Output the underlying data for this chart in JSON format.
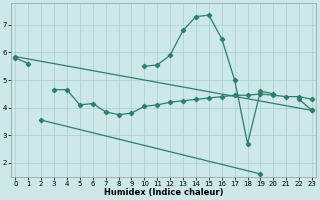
{
  "xlabel": "Humidex (Indice chaleur)",
  "bg_color": "#cce8e8",
  "line_color": "#2e7d6e",
  "grid_color": "#aacfcf",
  "ylim": [
    1.5,
    7.8
  ],
  "xlim": [
    -0.3,
    23.3
  ],
  "yticks": [
    2,
    3,
    4,
    5,
    6,
    7
  ],
  "xticks": [
    0,
    1,
    2,
    3,
    4,
    5,
    6,
    7,
    8,
    9,
    10,
    11,
    12,
    13,
    14,
    15,
    16,
    17,
    18,
    19,
    20,
    21,
    22,
    23
  ],
  "line1_x": [
    0,
    1,
    10,
    11,
    12,
    13,
    14,
    15,
    16,
    17,
    18,
    19,
    20,
    22,
    23
  ],
  "line1_y": [
    5.8,
    5.6,
    5.5,
    5.55,
    5.9,
    6.8,
    7.3,
    7.35,
    6.5,
    5.0,
    2.7,
    4.6,
    4.5,
    4.3,
    3.9
  ],
  "line2_x": [
    3,
    4,
    5,
    6,
    7,
    8,
    9,
    10,
    11,
    12,
    13,
    14,
    15,
    16,
    17,
    18,
    19,
    20,
    21,
    22,
    23
  ],
  "line2_y": [
    4.65,
    4.65,
    4.1,
    4.15,
    3.85,
    3.75,
    3.8,
    4.05,
    4.1,
    4.2,
    4.25,
    4.3,
    4.35,
    4.4,
    4.45,
    4.45,
    4.5,
    4.45,
    4.4,
    4.4,
    4.3
  ],
  "line3_x": [
    0,
    23
  ],
  "line3_y": [
    5.85,
    3.9
  ],
  "line4_x": [
    2,
    19
  ],
  "line4_y": [
    3.55,
    1.6
  ]
}
